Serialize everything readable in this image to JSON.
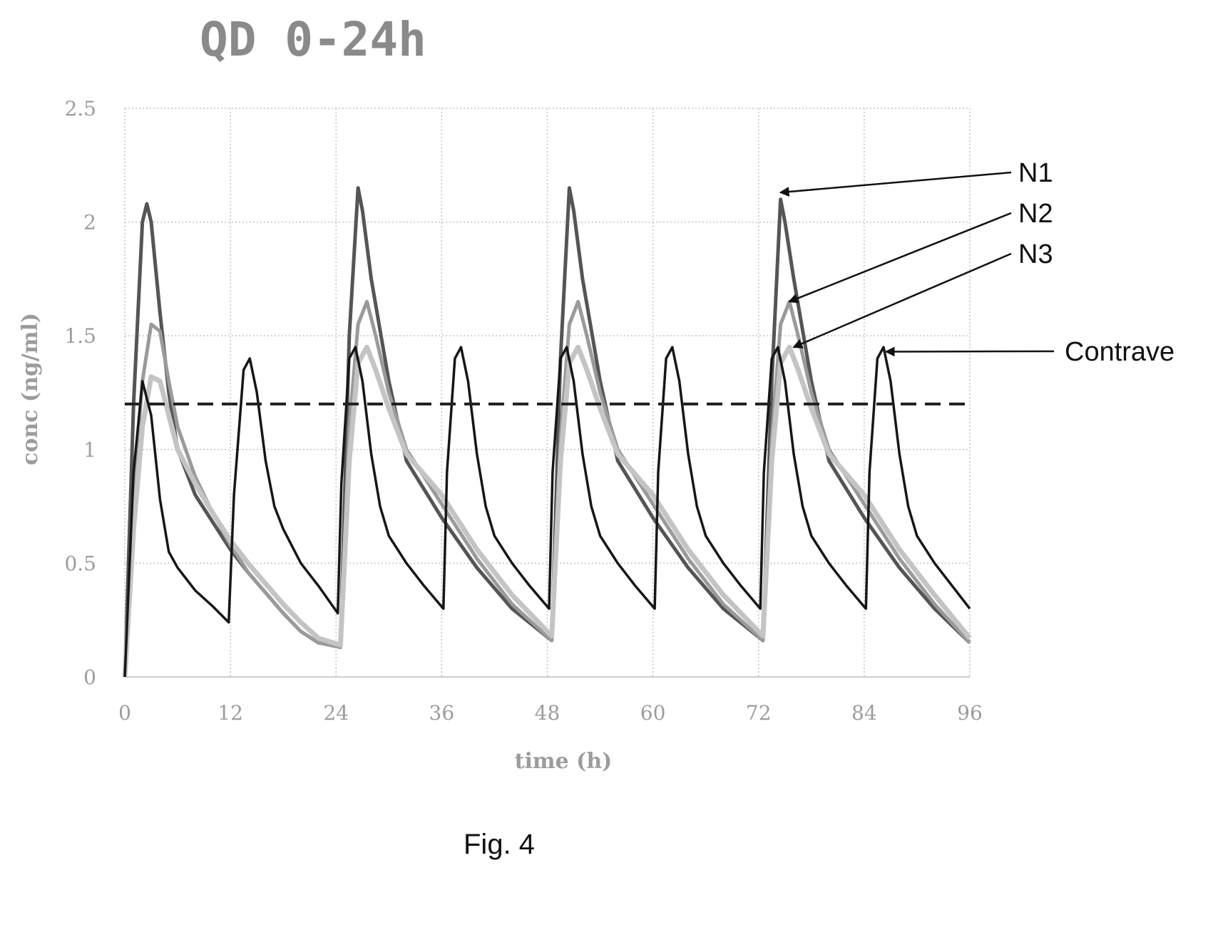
{
  "chart_data": {
    "type": "line",
    "title": "QD 0-24h",
    "xlabel": "time (h)",
    "ylabel": "conc (ng/ml)",
    "xlim": [
      0,
      96
    ],
    "ylim": [
      0,
      2.5
    ],
    "x_ticks": [
      "0",
      "12",
      "24",
      "36",
      "48",
      "60",
      "72",
      "84",
      "96"
    ],
    "y_ticks": [
      "0",
      "0.5",
      "1",
      "1.5",
      "2",
      "2.5"
    ],
    "grid": "vertical dotted lines at each x tick, partial horizontal dotted lines",
    "threshold_line": {
      "style": "dashed",
      "y": 1.2,
      "x_range": [
        0,
        96
      ]
    },
    "series": [
      {
        "name": "N1",
        "color": "#555555",
        "x": [
          0,
          1,
          2,
          2.5,
          3,
          4,
          5,
          6,
          8,
          10,
          12,
          14,
          16,
          18,
          20,
          22,
          24.5,
          25.5,
          26.5,
          27,
          28,
          30,
          32,
          36,
          40,
          44,
          48.5,
          49.5,
          50.5,
          51,
          52,
          54,
          56,
          60,
          64,
          68,
          72.5,
          73.5,
          74.5,
          75,
          76,
          78,
          80,
          84,
          88,
          92,
          96
        ],
        "y": [
          0,
          1.2,
          2.0,
          2.08,
          2.0,
          1.6,
          1.25,
          1.0,
          0.8,
          0.68,
          0.56,
          0.46,
          0.37,
          0.28,
          0.2,
          0.15,
          0.14,
          1.5,
          2.15,
          2.05,
          1.75,
          1.3,
          0.95,
          0.7,
          0.48,
          0.3,
          0.16,
          1.4,
          2.15,
          2.05,
          1.75,
          1.3,
          0.95,
          0.7,
          0.48,
          0.3,
          0.16,
          1.3,
          2.1,
          2.0,
          1.75,
          1.3,
          0.95,
          0.7,
          0.48,
          0.3,
          0.15
        ]
      },
      {
        "name": "N2",
        "color": "#9a9a9a",
        "x": [
          0,
          1,
          2,
          3,
          4,
          5,
          6,
          8,
          10,
          12,
          14,
          16,
          18,
          20,
          22,
          24.5,
          25.5,
          26.5,
          27.5,
          28.5,
          30,
          32,
          36,
          40,
          44,
          48.5,
          49.5,
          50.5,
          51.5,
          52.5,
          54,
          56,
          60,
          64,
          68,
          72.5,
          73.5,
          74.5,
          75.5,
          76.5,
          78,
          80,
          84,
          88,
          92,
          96
        ],
        "y": [
          0,
          0.8,
          1.3,
          1.55,
          1.52,
          1.3,
          1.1,
          0.88,
          0.72,
          0.58,
          0.46,
          0.37,
          0.28,
          0.2,
          0.15,
          0.13,
          1.1,
          1.55,
          1.65,
          1.5,
          1.25,
          1.0,
          0.76,
          0.52,
          0.32,
          0.16,
          1.05,
          1.55,
          1.65,
          1.5,
          1.25,
          1.0,
          0.76,
          0.52,
          0.32,
          0.16,
          1.05,
          1.55,
          1.65,
          1.5,
          1.25,
          1.0,
          0.76,
          0.52,
          0.32,
          0.15
        ]
      },
      {
        "name": "N3",
        "color": "#c4c4c4",
        "x": [
          0,
          1,
          2,
          3,
          4,
          5,
          6,
          8,
          10,
          12,
          14,
          16,
          18,
          20,
          22,
          24.5,
          25.5,
          26.5,
          27.5,
          28.5,
          30,
          32,
          36,
          40,
          44,
          48.5,
          49.5,
          50.5,
          51.5,
          52.5,
          54,
          56,
          60,
          64,
          68,
          72.5,
          73.5,
          74.5,
          75.5,
          76.5,
          78,
          80,
          84,
          88,
          92,
          96
        ],
        "y": [
          0,
          0.65,
          1.1,
          1.32,
          1.3,
          1.15,
          1.0,
          0.85,
          0.72,
          0.6,
          0.5,
          0.41,
          0.32,
          0.24,
          0.17,
          0.14,
          0.95,
          1.38,
          1.45,
          1.35,
          1.18,
          0.98,
          0.8,
          0.56,
          0.36,
          0.18,
          0.95,
          1.38,
          1.45,
          1.35,
          1.18,
          0.98,
          0.8,
          0.56,
          0.36,
          0.18,
          0.95,
          1.38,
          1.45,
          1.35,
          1.18,
          0.98,
          0.8,
          0.56,
          0.36,
          0.17
        ]
      },
      {
        "name": "Contrave",
        "color": "#161616",
        "x": [
          0,
          1,
          2,
          3,
          4,
          5,
          6,
          8,
          10,
          11.8,
          12.4,
          13.5,
          14.2,
          15,
          16,
          17,
          18,
          20,
          22,
          24.2,
          24.6,
          25.5,
          26.2,
          27,
          28,
          29,
          30,
          32,
          34,
          36.2,
          36.6,
          37.5,
          38.2,
          39,
          40,
          41,
          42,
          44,
          46,
          48.2,
          48.6,
          49.5,
          50.2,
          51,
          52,
          53,
          54,
          56,
          58,
          60.2,
          60.6,
          61.5,
          62.2,
          63,
          64,
          65,
          66,
          68,
          70,
          72.2,
          72.6,
          73.5,
          74.2,
          75,
          76,
          77,
          78,
          80,
          82,
          84.2,
          84.6,
          85.5,
          86.2,
          87,
          88,
          89,
          90,
          92,
          94,
          96
        ],
        "y": [
          0,
          0.9,
          1.3,
          1.15,
          0.78,
          0.55,
          0.48,
          0.38,
          0.31,
          0.24,
          0.8,
          1.35,
          1.4,
          1.25,
          0.95,
          0.75,
          0.65,
          0.5,
          0.4,
          0.28,
          0.85,
          1.4,
          1.45,
          1.3,
          0.98,
          0.75,
          0.62,
          0.5,
          0.4,
          0.3,
          0.9,
          1.4,
          1.45,
          1.3,
          0.98,
          0.75,
          0.62,
          0.5,
          0.4,
          0.3,
          0.9,
          1.4,
          1.45,
          1.3,
          0.98,
          0.75,
          0.62,
          0.5,
          0.4,
          0.3,
          0.9,
          1.4,
          1.45,
          1.3,
          0.98,
          0.75,
          0.62,
          0.5,
          0.4,
          0.3,
          0.9,
          1.4,
          1.45,
          1.3,
          0.98,
          0.75,
          0.62,
          0.5,
          0.4,
          0.3,
          0.9,
          1.4,
          1.45,
          1.3,
          0.98,
          0.75,
          0.62,
          0.5,
          0.4,
          0.3
        ]
      }
    ],
    "annotations": [
      {
        "text": "N1",
        "points_to": {
          "x": 74.5,
          "y": 2.13
        }
      },
      {
        "text": "N2",
        "points_to": {
          "x": 75.5,
          "y": 1.65
        }
      },
      {
        "text": "N3",
        "points_to": {
          "x": 76,
          "y": 1.45
        }
      },
      {
        "text": "Contrave",
        "points_to": {
          "x": 86.5,
          "y": 1.43
        }
      }
    ]
  },
  "figure_caption": "Fig. 4"
}
